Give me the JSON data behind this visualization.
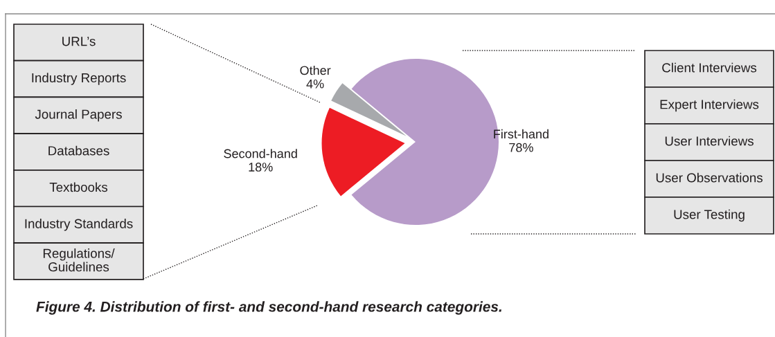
{
  "chart_data": {
    "type": "pie",
    "categories": [
      "First-hand",
      "Other",
      "Second-hand"
    ],
    "values": [
      78,
      4,
      18
    ],
    "colors": [
      "#b79bc9",
      "#a7a9ac",
      "#ed1c24"
    ],
    "value_labels": [
      "78%",
      "4%",
      "18%"
    ],
    "annotations": [
      "URL’s",
      "Industry Reports",
      "Journal Papers",
      "Databases",
      "Textbooks",
      "Industry Standards",
      "Regulations/\nGuidelines",
      "Client Interviews",
      "Expert Interviews",
      "User Interviews",
      "User Observations",
      "User Testing",
      "Figure 4. Distribution of first- and second-hand research categories."
    ]
  }
}
